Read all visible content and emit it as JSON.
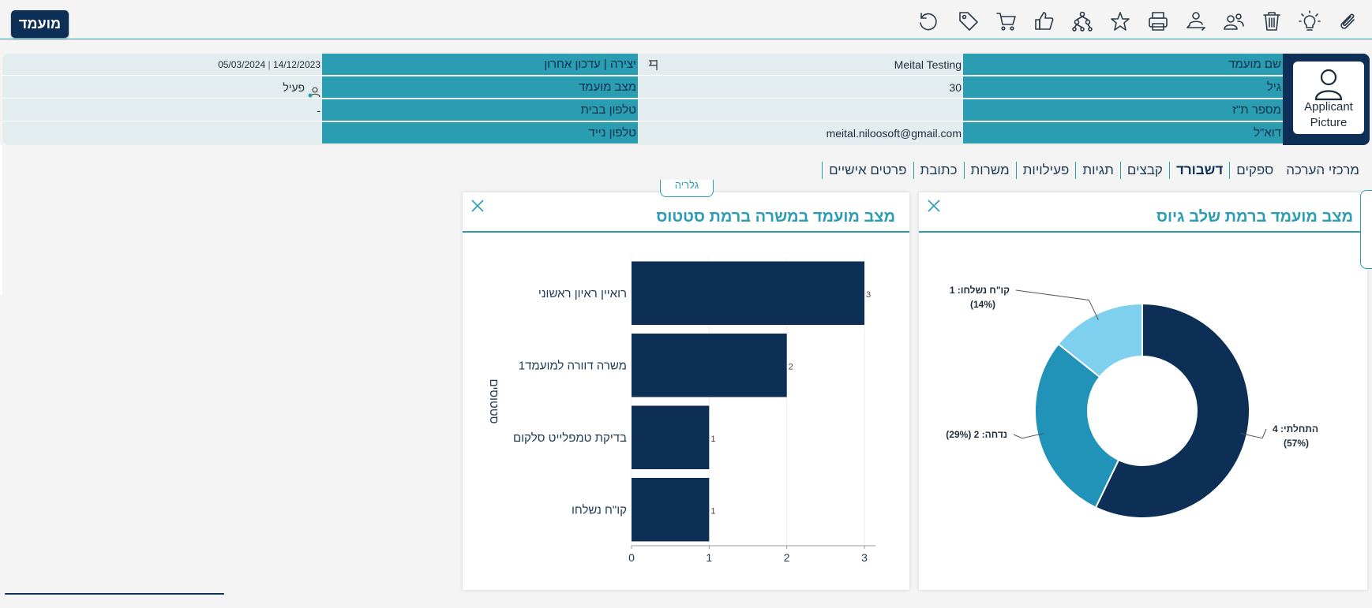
{
  "header": {
    "title": "מועמד",
    "toolbar_icons": [
      "refresh-icon",
      "tag-icon",
      "cart-icon",
      "thumbs-up-icon",
      "hierarchy-icon",
      "star-icon",
      "print-icon",
      "transfer-user-icon",
      "users-icon",
      "trash-icon",
      "lightbulb-icon",
      "paperclip-icon"
    ]
  },
  "applicant": {
    "picture_label_1": "Applicant",
    "picture_label_2": "Picture",
    "rows": [
      {
        "label1": "שם מועמד",
        "value1": "Meital Testing",
        "label2": "יצירה | עדכון אחרון",
        "value2_created": "14/12/2023",
        "value2_updated": "05/03/2024"
      },
      {
        "label1": "גיל",
        "value1": "30",
        "label2": "מצב מועמד",
        "value2": "פעיל"
      },
      {
        "label1": "מספר ת\"ז",
        "value1": "",
        "label2": "טלפון בבית",
        "value2": "-"
      },
      {
        "label1": "דוא\"ל",
        "value1": "meital.niloosoft@gmail.com",
        "label2": "טלפון נייד",
        "value2": ""
      }
    ]
  },
  "tabs": [
    {
      "label": "פרטים אישיים"
    },
    {
      "label": "כתובת"
    },
    {
      "label": "משרות"
    },
    {
      "label": "פעילויות"
    },
    {
      "label": "תגיות"
    },
    {
      "label": "קבצים"
    },
    {
      "label": "דשבורד",
      "active": true
    },
    {
      "label": "ספקים"
    },
    {
      "label": "מרכזי הערכה"
    }
  ],
  "floating_tag": "גלריה",
  "colors": {
    "accent": "#2a9db3",
    "navy": "#0d2f55",
    "light_blue": "#7fcfee",
    "mid_blue": "#2192b8"
  },
  "chart_data": [
    {
      "type": "bar",
      "title": "מצב מועמד במשרה ברמת סטטוס",
      "orientation": "horizontal",
      "categories": [
        "רואיין ראיון ראשוני",
        "משרה דוורה למועמד1",
        "בדיקת טמפלייט סלקום",
        "קו\"ח נשלחו"
      ],
      "values": [
        3,
        2,
        1,
        1
      ],
      "xlabel": "",
      "ylabel": "סטטוסים",
      "xlim": [
        0,
        3
      ],
      "xticks": [
        "0",
        "1",
        "2",
        "3"
      ]
    },
    {
      "type": "pie",
      "donut": true,
      "title": "מצב מועמד ברמת שלב גיוס",
      "slices": [
        {
          "label": "התחלתי: 4",
          "pct": "(57%)",
          "value": 4,
          "color": "#0d2f55"
        },
        {
          "label": "נדחה: 2 (29%)",
          "pct": "",
          "value": 2,
          "color": "#2192b8"
        },
        {
          "label": "קו\"ח נשלחו: 1",
          "pct": "(14%)",
          "value": 1,
          "color": "#7fcfee"
        }
      ]
    }
  ]
}
